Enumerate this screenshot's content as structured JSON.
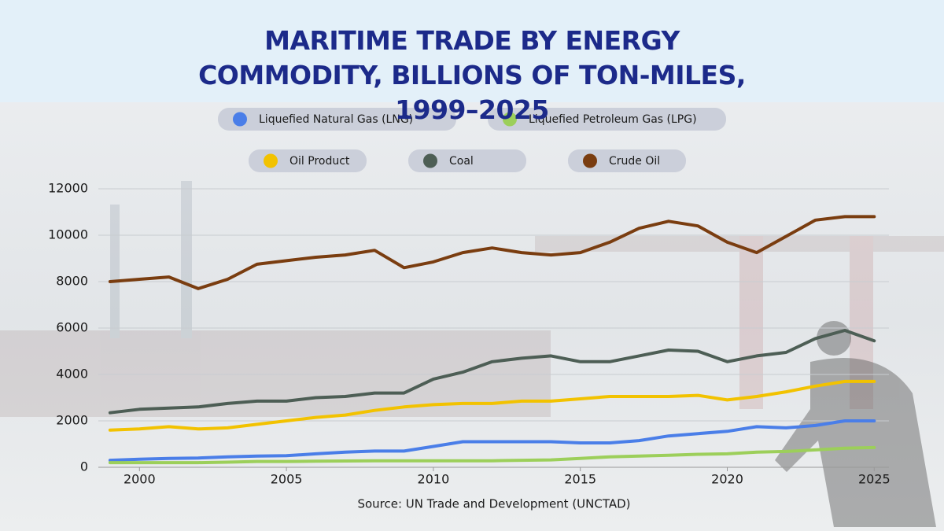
{
  "chart_data": {
    "type": "line",
    "title": "MARITIME TRADE BY ENERGY COMMODITY, BILLIONS OF TON-MILES, 1999–2025",
    "source": "Source: UN Trade and Development (UNCTAD)",
    "x": [
      1999,
      2000,
      2001,
      2002,
      2003,
      2004,
      2005,
      2006,
      2007,
      2008,
      2009,
      2010,
      2011,
      2012,
      2013,
      2014,
      2015,
      2016,
      2017,
      2018,
      2019,
      2020,
      2021,
      2022,
      2023,
      2024,
      2025
    ],
    "xlim": [
      1998.6,
      2025.5
    ],
    "xticks": [
      2000,
      2005,
      2010,
      2015,
      2020,
      2025
    ],
    "ylim": [
      0,
      12000
    ],
    "yticks": [
      0,
      2000,
      4000,
      6000,
      8000,
      10000,
      12000
    ],
    "grid": true,
    "series": [
      {
        "name": "Liquefied Natural Gas (LNG)",
        "color": "#4a7ee8",
        "values": [
          300,
          350,
          380,
          400,
          450,
          480,
          500,
          580,
          650,
          700,
          700,
          900,
          1100,
          1100,
          1100,
          1100,
          1050,
          1050,
          1150,
          1350,
          1450,
          1550,
          1750,
          1700,
          1800,
          2000,
          2000
        ]
      },
      {
        "name": "Liquefied Petroleum Gas (LPG)",
        "color": "#9ccf5a",
        "values": [
          200,
          200,
          200,
          200,
          220,
          250,
          250,
          260,
          270,
          280,
          280,
          280,
          280,
          280,
          300,
          320,
          380,
          450,
          480,
          520,
          560,
          580,
          650,
          680,
          750,
          820,
          850
        ]
      },
      {
        "name": "Oil Product",
        "color": "#f2c200",
        "values": [
          1600,
          1650,
          1750,
          1650,
          1700,
          1850,
          2000,
          2150,
          2250,
          2450,
          2600,
          2700,
          2750,
          2750,
          2850,
          2850,
          2950,
          3050,
          3050,
          3050,
          3100,
          2900,
          3050,
          3250,
          3500,
          3700,
          3700
        ]
      },
      {
        "name": "Coal",
        "color": "#4d5e55",
        "values": [
          2350,
          2500,
          2550,
          2600,
          2750,
          2850,
          2850,
          3000,
          3050,
          3200,
          3200,
          3800,
          4100,
          4550,
          4700,
          4800,
          4550,
          4550,
          4800,
          5050,
          5000,
          4550,
          4800,
          4950,
          5550,
          5900,
          5450
        ]
      },
      {
        "name": "Crude Oil",
        "color": "#7a3d10",
        "values": [
          8000,
          8100,
          8200,
          7700,
          8100,
          8750,
          8900,
          9050,
          9150,
          9350,
          8600,
          8850,
          9250,
          9450,
          9250,
          9150,
          9250,
          9700,
          10300,
          10600,
          10400,
          9700,
          9250,
          9950,
          10650,
          10800,
          10800
        ]
      }
    ]
  }
}
